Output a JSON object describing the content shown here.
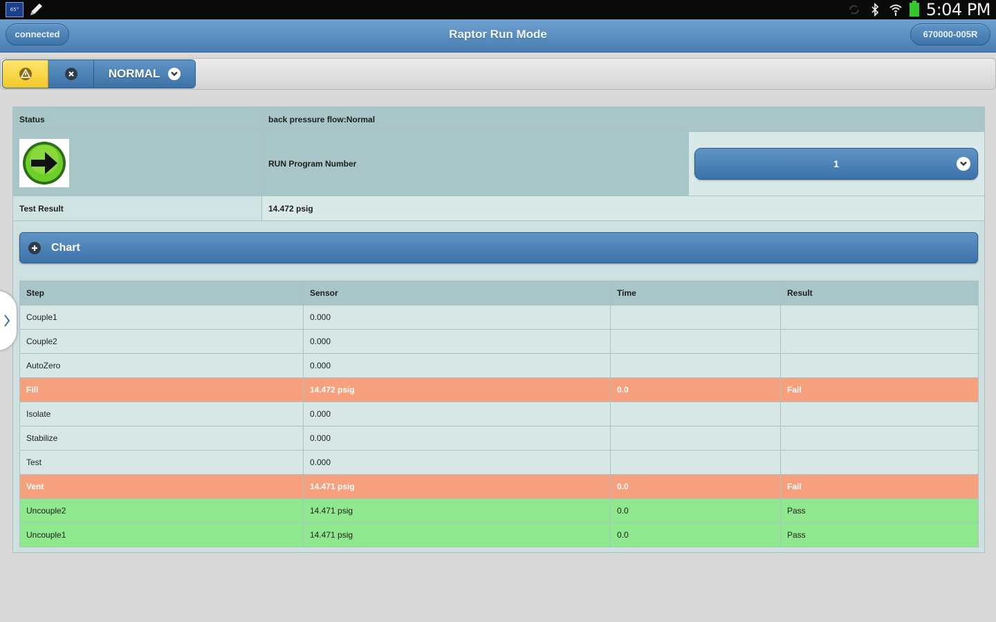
{
  "status_bar": {
    "time": "5:04 PM",
    "thumb_label": "65°",
    "icons": [
      "image-thumbnail-icon",
      "pencil-icon",
      "sync-icon",
      "bluetooth-icon",
      "wifi-icon",
      "battery-icon"
    ]
  },
  "header": {
    "left_pill": "connected",
    "title": "Raptor Run Mode",
    "right_pill": "670000-005R"
  },
  "toolbar": {
    "mode_label": "NORMAL",
    "icons": [
      "warning-icon",
      "close-icon",
      "info-icon",
      "chevron-down-icon"
    ]
  },
  "info": {
    "status_label": "Status",
    "status_value": "back pressure flow:Normal",
    "program_label": "RUN Program Number",
    "program_value": "1",
    "test_result_label": "Test Result",
    "test_result_value": "14.472 psig"
  },
  "chart_toggle": {
    "label": "Chart"
  },
  "steps_table": {
    "columns": [
      "Step",
      "Sensor",
      "Time",
      "Result"
    ],
    "rows": [
      {
        "step": "Couple1",
        "sensor": "0.000",
        "time": "",
        "result": "",
        "state": "normal"
      },
      {
        "step": "Couple2",
        "sensor": "0.000",
        "time": "",
        "result": "",
        "state": "normal"
      },
      {
        "step": "AutoZero",
        "sensor": "0.000",
        "time": "",
        "result": "",
        "state": "normal"
      },
      {
        "step": "Fill",
        "sensor": "14.472 psig",
        "time": "0.0",
        "result": "Fail",
        "state": "fail"
      },
      {
        "step": "Isolate",
        "sensor": "0.000",
        "time": "",
        "result": "",
        "state": "normal"
      },
      {
        "step": "Stabilize",
        "sensor": "0.000",
        "time": "",
        "result": "",
        "state": "normal"
      },
      {
        "step": "Test",
        "sensor": "0.000",
        "time": "",
        "result": "",
        "state": "normal"
      },
      {
        "step": "Vent",
        "sensor": "14.471 psig",
        "time": "0.0",
        "result": "Fail",
        "state": "fail"
      },
      {
        "step": "Uncouple2",
        "sensor": "14.471 psig",
        "time": "0.0",
        "result": "Pass",
        "state": "pass"
      },
      {
        "step": "Uncouple1",
        "sensor": "14.471 psig",
        "time": "0.0",
        "result": "Pass",
        "state": "pass"
      }
    ]
  },
  "colors": {
    "header_blue": "#4a7eb3",
    "fail_row": "#f7a07e",
    "pass_row": "#8fe88d",
    "warning_yellow": "#f2c82a",
    "table_header": "#a8c6c8"
  }
}
